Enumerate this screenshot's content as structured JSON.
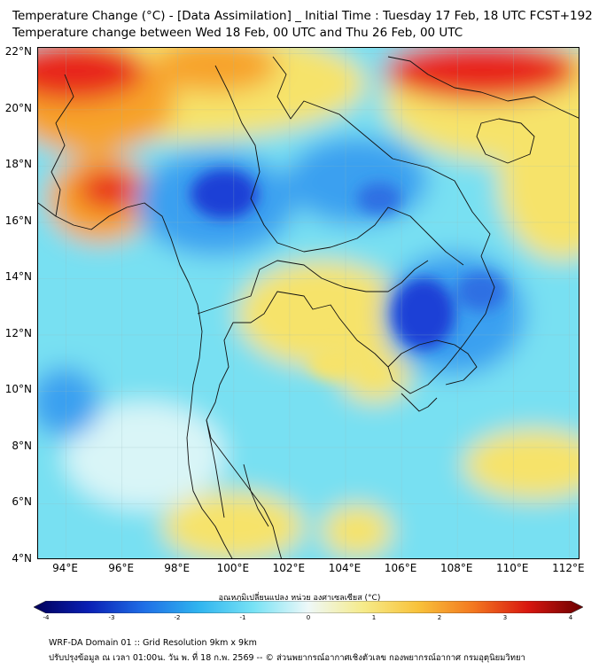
{
  "header": {
    "line1": "Temperature Change (°C) - [Data Assimilation] _ Initial Time : Tuesday 17 Feb, 18 UTC FCST+192",
    "line2": "Temperature change between Wed 18 Feb, 00 UTC and Thu 26 Feb, 00 UTC"
  },
  "map": {
    "lat_labels": [
      "22°N",
      "20°N",
      "18°N",
      "16°N",
      "14°N",
      "12°N",
      "10°N",
      "8°N",
      "6°N",
      "4°N"
    ],
    "lon_labels": [
      "94°E",
      "96°E",
      "98°E",
      "100°E",
      "102°E",
      "104°E",
      "106°E",
      "108°E",
      "110°E",
      "112°E"
    ],
    "lat_values": [
      22,
      20,
      18,
      16,
      14,
      12,
      10,
      8,
      6,
      4
    ],
    "lon_values": [
      94,
      96,
      98,
      100,
      102,
      104,
      106,
      108,
      110,
      112
    ],
    "lat_range": [
      4,
      22.2
    ],
    "lon_range": [
      93,
      112.4
    ],
    "field_colors": {
      "strong_cool": "#1a3fd6",
      "cool": "#3aa0f0",
      "light_cool": "#8fe3f4",
      "neutral": "#d9f5f7",
      "warm": "#f6e36a",
      "hot": "#f7a32b",
      "very_hot": "#e8251f"
    }
  },
  "colorbar": {
    "label": "อุณหภูมิเปลี่ยนแปลง หน่วย องศาเซลเซียส (°C)",
    "ticks": [
      "-4",
      "-3",
      "-2",
      "-1",
      "0",
      "1",
      "2",
      "3",
      "4"
    ],
    "tick_values": [
      -4,
      -3,
      -2,
      -1,
      0,
      1,
      2,
      3,
      4
    ],
    "stops": [
      "#00005a",
      "#0a1fb4",
      "#1f6ee6",
      "#2fb4ef",
      "#77e2f5",
      "#eef8f8",
      "#f6eb8a",
      "#f8c23a",
      "#f3781f",
      "#d8160f",
      "#6a0000"
    ]
  },
  "footer": {
    "line1": "WRF-DA Domain 01 :: Grid Resolution 9km x 9km",
    "line2": "ปรับปรุงข้อมูล ณ เวลา 01:00น. วัน พ. ที่ 18 ก.พ. 2569 -- © ส่วนพยากรณ์อากาศเชิงตัวเลข กองพยากรณ์อากาศ กรมอุตุนิยมวิทยา"
  }
}
